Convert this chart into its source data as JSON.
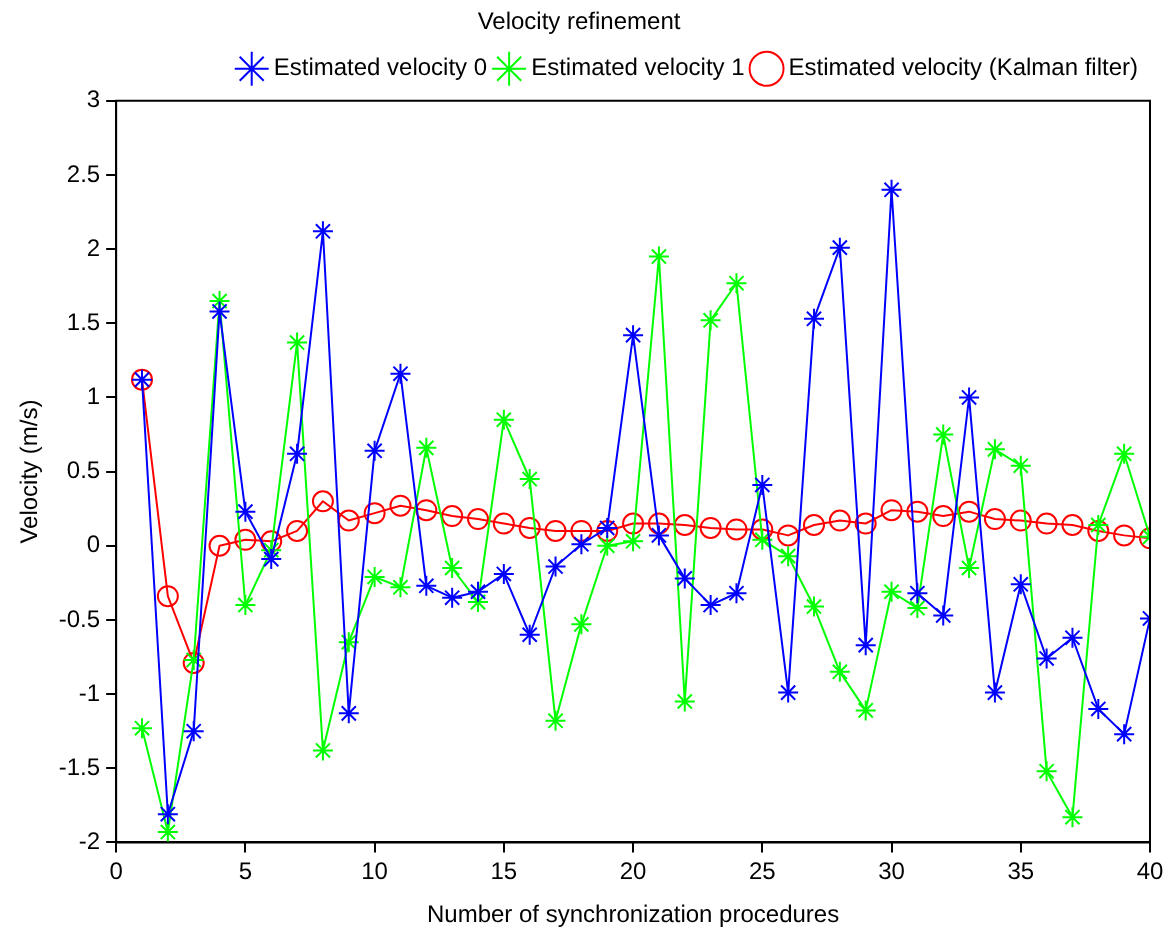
{
  "chart_data": {
    "type": "line",
    "title": "Velocity refinement",
    "xlabel": "Number of synchronization procedures",
    "ylabel": "Velocity (m/s)",
    "x": [
      1,
      2,
      3,
      4,
      5,
      6,
      7,
      8,
      9,
      10,
      11,
      12,
      13,
      14,
      15,
      16,
      17,
      18,
      19,
      20,
      21,
      22,
      23,
      24,
      25,
      26,
      27,
      28,
      29,
      30,
      31,
      32,
      33,
      34,
      35,
      36,
      37,
      38,
      39,
      40
    ],
    "xlim": [
      0,
      40
    ],
    "xticks": [
      0,
      5,
      10,
      15,
      20,
      25,
      30,
      35,
      40
    ],
    "ylim": [
      -2,
      3
    ],
    "yticks": [
      -2,
      -1.5,
      -1,
      -0.5,
      0,
      0.5,
      1,
      1.5,
      2,
      2.5,
      3
    ],
    "grid": false,
    "legend": "top right",
    "line_style": "solid",
    "series": [
      {
        "name": "Estimated velocity 0",
        "color": "#0000ff",
        "marker": "cross",
        "values": [
          1.12,
          -1.81,
          -1.25,
          1.58,
          0.23,
          -0.09,
          0.62,
          2.12,
          -1.13,
          0.64,
          1.16,
          -0.27,
          -0.35,
          -0.31,
          -0.19,
          -0.6,
          -0.14,
          0.01,
          0.12,
          1.42,
          0.07,
          -0.22,
          -0.4,
          -0.32,
          0.41,
          -0.99,
          1.53,
          2.01,
          -0.67,
          2.4,
          -0.32,
          -0.47,
          1.0,
          -0.99,
          -0.26,
          -0.76,
          -0.62,
          -1.1,
          -1.27,
          -0.49
        ]
      },
      {
        "name": "Estimated velocity 1",
        "color": "#00ff00",
        "marker": "cross",
        "values": [
          -1.23,
          -1.93,
          -0.77,
          1.65,
          -0.4,
          -0.03,
          1.37,
          -1.38,
          -0.65,
          -0.21,
          -0.28,
          0.66,
          -0.15,
          -0.38,
          0.85,
          0.45,
          -1.18,
          -0.53,
          0.0,
          0.03,
          1.95,
          -1.05,
          1.52,
          1.77,
          0.04,
          -0.07,
          -0.41,
          -0.85,
          -1.11,
          -0.31,
          -0.42,
          0.75,
          -0.15,
          0.65,
          0.54,
          -1.52,
          -1.83,
          0.14,
          0.62,
          0.06
        ]
      },
      {
        "name": "Estimated velocity (Kalman filter)",
        "color": "#ff0000",
        "marker": "circle",
        "values": [
          1.12,
          -0.34,
          -0.79,
          0.0,
          0.04,
          0.03,
          0.1,
          0.3,
          0.17,
          0.22,
          0.27,
          0.24,
          0.2,
          0.18,
          0.15,
          0.12,
          0.1,
          0.1,
          0.1,
          0.15,
          0.15,
          0.14,
          0.12,
          0.11,
          0.11,
          0.07,
          0.14,
          0.17,
          0.15,
          0.24,
          0.23,
          0.2,
          0.23,
          0.18,
          0.17,
          0.15,
          0.14,
          0.1,
          0.07,
          0.05
        ]
      }
    ]
  }
}
